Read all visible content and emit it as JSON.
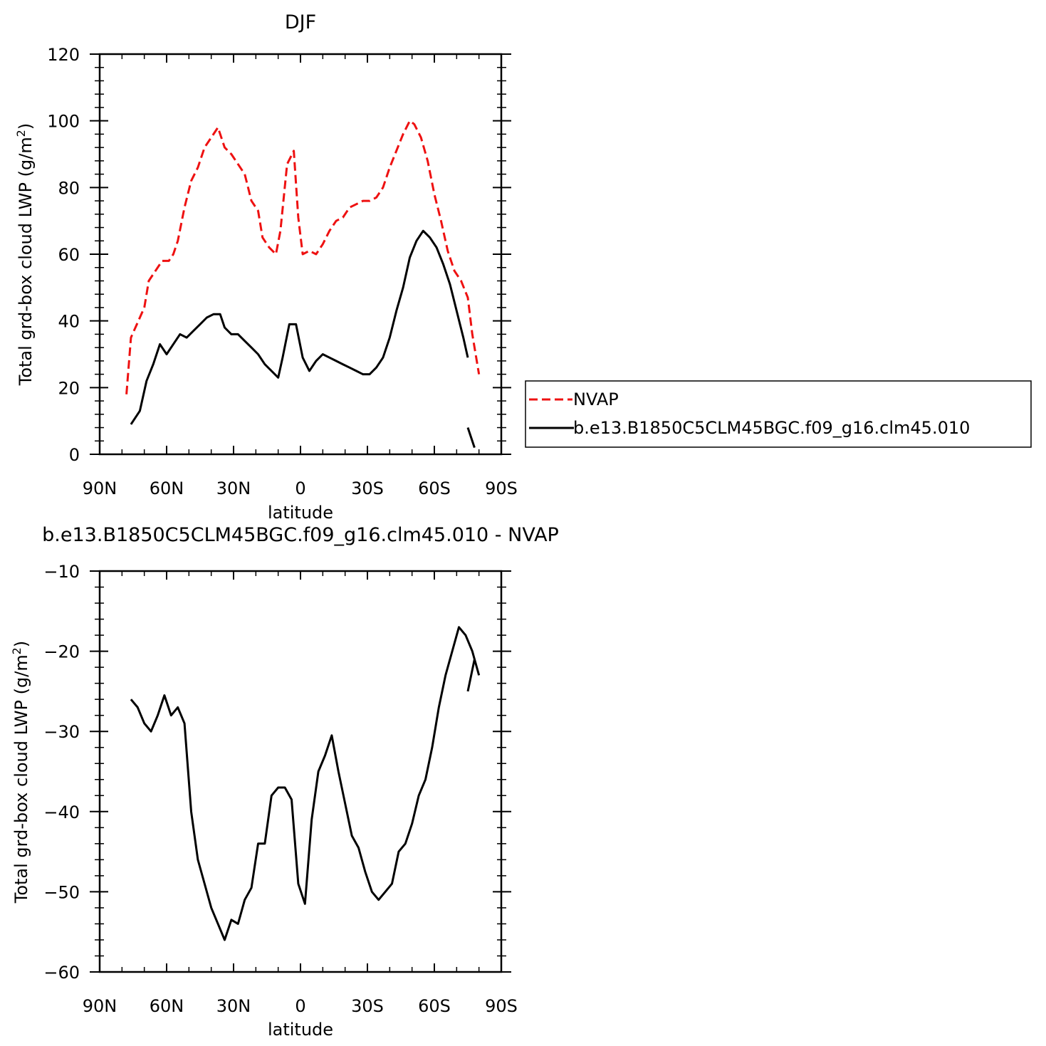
{
  "chart_data": [
    {
      "type": "line",
      "title": "DJF",
      "xlabel": "latitude",
      "ylabel": "Total grd-box cloud LWP (g/m",
      "ylabel_sup": "2",
      "ylabel_close": ")",
      "xlim": [
        -90,
        90
      ],
      "ylim": [
        0,
        120
      ],
      "x_ticks": [
        -90,
        -60,
        -30,
        0,
        30,
        60,
        90
      ],
      "x_tick_labels": [
        "90N",
        "60N",
        "30N",
        "0",
        "30S",
        "60S",
        "90S"
      ],
      "y_ticks": [
        0,
        20,
        40,
        60,
        80,
        100,
        120
      ],
      "y_tick_labels": [
        "0",
        "20",
        "40",
        "60",
        "80",
        "100",
        "120"
      ],
      "grid": false,
      "legend": "outside-right",
      "series": [
        {
          "name": "NVAP",
          "color": "#ee1111",
          "dash": "dashed",
          "segments": [
            [
              [
                -78,
                18
              ],
              [
                -76,
                35
              ],
              [
                -72,
                41
              ],
              [
                -70,
                44
              ],
              [
                -68,
                52
              ],
              [
                -65,
                55
              ],
              [
                -62,
                58
              ],
              [
                -59,
                58
              ],
              [
                -57,
                60
              ],
              [
                -55,
                64
              ],
              [
                -52,
                74
              ],
              [
                -49,
                82
              ],
              [
                -46,
                86
              ],
              [
                -43,
                92
              ],
              [
                -40,
                95
              ],
              [
                -37,
                98
              ],
              [
                -34,
                92
              ],
              [
                -31,
                90
              ],
              [
                -28,
                87
              ],
              [
                -25,
                84
              ],
              [
                -22,
                76
              ],
              [
                -19,
                73
              ],
              [
                -17,
                65
              ],
              [
                -14,
                62
              ],
              [
                -11,
                60
              ],
              [
                -9,
                67
              ],
              [
                -6,
                87
              ],
              [
                -3,
                91
              ],
              [
                -1,
                71
              ],
              [
                1,
                60
              ],
              [
                4,
                61
              ],
              [
                7,
                60
              ],
              [
                10,
                63
              ],
              [
                13,
                67
              ],
              [
                16,
                70
              ],
              [
                19,
                71
              ],
              [
                22,
                74
              ],
              [
                25,
                75
              ],
              [
                28,
                76
              ],
              [
                31,
                76
              ],
              [
                34,
                77
              ],
              [
                37,
                80
              ],
              [
                40,
                86
              ],
              [
                43,
                91
              ],
              [
                46,
                96
              ],
              [
                49,
                100
              ],
              [
                51,
                99
              ],
              [
                54,
                95
              ],
              [
                57,
                88
              ],
              [
                60,
                78
              ],
              [
                63,
                70
              ],
              [
                66,
                61
              ],
              [
                69,
                55
              ],
              [
                72,
                52
              ],
              [
                75,
                47
              ],
              [
                77,
                36
              ],
              [
                80,
                24
              ]
            ]
          ]
        },
        {
          "name": "b.e13.B1850C5CLM45BGC.f09_g16.clm45.010",
          "color": "#000000",
          "dash": "solid",
          "segments": [
            [
              [
                -76,
                9
              ],
              [
                -72,
                13
              ],
              [
                -69,
                22
              ],
              [
                -66,
                27
              ],
              [
                -63,
                33
              ],
              [
                -60,
                30
              ],
              [
                -57,
                33
              ],
              [
                -54,
                36
              ],
              [
                -51,
                35
              ],
              [
                -48,
                37
              ],
              [
                -45,
                39
              ],
              [
                -42,
                41
              ],
              [
                -39,
                42
              ],
              [
                -36,
                42
              ],
              [
                -34,
                38
              ],
              [
                -31,
                36
              ],
              [
                -28,
                36
              ],
              [
                -25,
                34
              ],
              [
                -22,
                32
              ],
              [
                -19,
                30
              ],
              [
                -16,
                27
              ],
              [
                -13,
                25
              ],
              [
                -10,
                23
              ],
              [
                -8,
                29
              ],
              [
                -5,
                39
              ],
              [
                -2,
                39
              ],
              [
                1,
                29
              ],
              [
                4,
                25
              ],
              [
                7,
                28
              ],
              [
                10,
                30
              ],
              [
                13,
                29
              ],
              [
                16,
                28
              ],
              [
                19,
                27
              ],
              [
                22,
                26
              ],
              [
                25,
                25
              ],
              [
                28,
                24
              ],
              [
                31,
                24
              ],
              [
                34,
                26
              ],
              [
                37,
                29
              ],
              [
                40,
                35
              ],
              [
                43,
                43
              ],
              [
                46,
                50
              ],
              [
                49,
                59
              ],
              [
                52,
                64
              ],
              [
                55,
                67
              ],
              [
                58,
                65
              ],
              [
                61,
                62
              ],
              [
                64,
                57
              ],
              [
                67,
                51
              ],
              [
                70,
                43
              ],
              [
                73,
                35
              ],
              [
                75,
                29
              ]
            ],
            [
              [
                75,
                8
              ],
              [
                78,
                2
              ]
            ]
          ]
        }
      ]
    },
    {
      "type": "line",
      "title": "b.e13.B1850C5CLM45BGC.f09_g16.clm45.010  -  NVAP",
      "xlabel": "latitude",
      "ylabel": "Total grd-box cloud LWP (g/m",
      "ylabel_sup": "2",
      "ylabel_close": ")",
      "xlim": [
        -90,
        90
      ],
      "ylim": [
        -60,
        -10
      ],
      "x_ticks": [
        -90,
        -60,
        -30,
        0,
        30,
        60,
        90
      ],
      "x_tick_labels": [
        "90N",
        "60N",
        "30N",
        "0",
        "30S",
        "60S",
        "90S"
      ],
      "y_ticks": [
        -60,
        -50,
        -40,
        -30,
        -20,
        -10
      ],
      "y_tick_labels": [
        "−60",
        "−50",
        "−40",
        "−30",
        "−20",
        "−10"
      ],
      "grid": false,
      "series": [
        {
          "color": "#000000",
          "dash": "solid",
          "segments": [
            [
              [
                -76,
                -26
              ],
              [
                -73,
                -27
              ],
              [
                -70,
                -29
              ],
              [
                -67,
                -30
              ],
              [
                -64,
                -28
              ],
              [
                -61,
                -25.5
              ],
              [
                -58,
                -28
              ],
              [
                -55,
                -27
              ],
              [
                -52,
                -29
              ],
              [
                -49,
                -40
              ],
              [
                -46,
                -46
              ],
              [
                -43,
                -49
              ],
              [
                -40,
                -52
              ],
              [
                -37,
                -54
              ],
              [
                -34,
                -56
              ],
              [
                -31,
                -53.5
              ],
              [
                -28,
                -54
              ],
              [
                -25,
                -51
              ],
              [
                -22,
                -49.5
              ],
              [
                -19,
                -44
              ],
              [
                -16,
                -44
              ],
              [
                -13,
                -38
              ],
              [
                -10,
                -37
              ],
              [
                -7,
                -37
              ],
              [
                -4,
                -38.5
              ],
              [
                -1,
                -49
              ],
              [
                2,
                -51.5
              ],
              [
                5,
                -41
              ],
              [
                8,
                -35
              ],
              [
                11,
                -33
              ],
              [
                14,
                -30.5
              ],
              [
                17,
                -35
              ],
              [
                20,
                -39
              ],
              [
                23,
                -43
              ],
              [
                26,
                -44.5
              ],
              [
                29,
                -47.5
              ],
              [
                32,
                -50
              ],
              [
                35,
                -51
              ],
              [
                38,
                -50
              ],
              [
                41,
                -49
              ],
              [
                44,
                -45
              ],
              [
                47,
                -44
              ],
              [
                50,
                -41.5
              ],
              [
                53,
                -38
              ],
              [
                56,
                -36
              ],
              [
                59,
                -32
              ],
              [
                62,
                -27
              ],
              [
                65,
                -23
              ],
              [
                68,
                -20
              ],
              [
                71,
                -17
              ],
              [
                74,
                -18
              ],
              [
                77,
                -20
              ],
              [
                80,
                -23
              ]
            ],
            [
              [
                75,
                -25
              ],
              [
                78,
                -21
              ]
            ]
          ]
        }
      ]
    }
  ]
}
